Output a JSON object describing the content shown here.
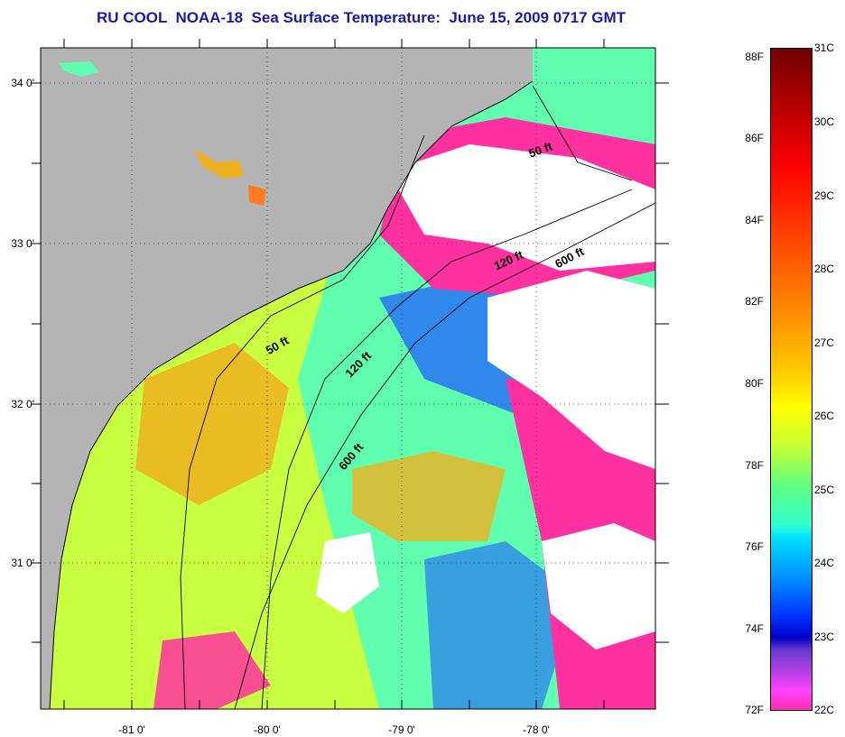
{
  "title": "RU COOL  NOAA-18  Sea Surface Temperature:  June 15, 2009 0717 GMT",
  "map": {
    "lon_ticks": [
      "-81 0'",
      "-80 0'",
      "-79 0'",
      "-78 0'"
    ],
    "lat_ticks": [
      "34 0'",
      "33 0'",
      "32 0'",
      "31 0'"
    ],
    "contour_labels": [
      "50 ft",
      "120 ft",
      "600 ft",
      "50 ft",
      "120 ft",
      "600 ft"
    ],
    "colors": {
      "land": "#b4b4b4",
      "cloud": "#ffffff",
      "warm": "#f0b020",
      "mid": "#ffff20",
      "cool": "#60ffb0",
      "cold": "#0040ff",
      "coldest": "#ff30a0"
    }
  },
  "colorbar": {
    "fahrenheit": [
      "88F",
      "86F",
      "84F",
      "82F",
      "80F",
      "78F",
      "76F",
      "74F",
      "72F"
    ],
    "celsius": [
      "31C",
      "30C",
      "29C",
      "28C",
      "27C",
      "26C",
      "25C",
      "24C",
      "23C",
      "22C"
    ]
  }
}
